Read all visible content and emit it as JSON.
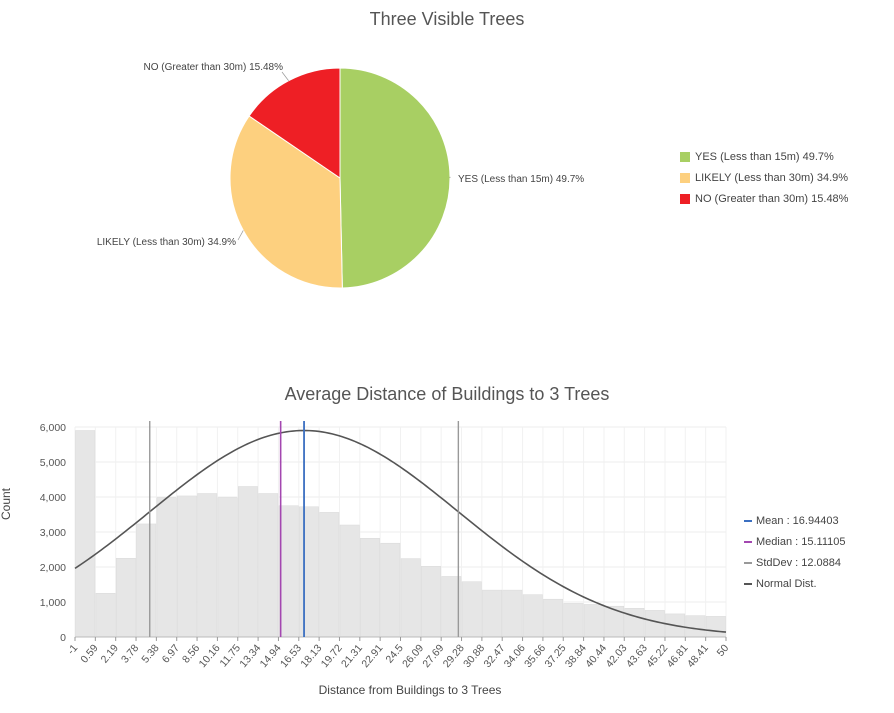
{
  "chart_data": [
    {
      "type": "pie",
      "title": "Three Visible Trees",
      "slices": [
        {
          "name": "YES (Less than 15m)",
          "value": 49.7,
          "color": "#a8cf63",
          "label": "YES (Less than 15m) 49.7%",
          "legend": "YES (Less than 15m) 49.7%"
        },
        {
          "name": "LIKELY (Less than 30m)",
          "value": 34.9,
          "color": "#fdd07f",
          "label": "LIKELY (Less than 30m) 34.9%",
          "legend": "LIKELY (Less than 30m) 34.9%"
        },
        {
          "name": "NO (Greater than 30m)",
          "value": 15.48,
          "color": "#ee1f25",
          "label": "NO (Greater than 30m) 15.48%",
          "legend": "NO (Greater than 30m) 15.48%"
        }
      ]
    },
    {
      "type": "bar",
      "title": "Average Distance of Buildings to 3 Trees",
      "xlabel": "Distance from Buildings to 3 Trees",
      "ylabel": "Count",
      "ylim": [
        0,
        6000
      ],
      "xlim": [
        -1,
        50
      ],
      "bin_edges": [
        -1,
        0.59,
        2.19,
        3.78,
        5.38,
        6.97,
        8.56,
        10.16,
        11.75,
        13.34,
        14.94,
        16.53,
        18.13,
        19.72,
        21.31,
        22.91,
        24.5,
        26.09,
        27.69,
        29.28,
        30.88,
        32.47,
        34.06,
        35.66,
        37.25,
        38.84,
        40.44,
        42.03,
        43.63,
        45.22,
        46.81,
        48.41,
        50
      ],
      "x_tick_labels": [
        "-1",
        "0.59",
        "2.19",
        "3.78",
        "5.38",
        "6.97",
        "8.56",
        "10.16",
        "11.75",
        "13.34",
        "14.94",
        "16.53",
        "18.13",
        "19.72",
        "21.31",
        "22.91",
        "24.5",
        "26.09",
        "27.69",
        "29.28",
        "30.88",
        "32.47",
        "34.06",
        "35.66",
        "37.25",
        "38.84",
        "40.44",
        "42.03",
        "43.63",
        "45.22",
        "46.81",
        "48.41",
        "50"
      ],
      "values": [
        5900,
        1250,
        2250,
        3230,
        3980,
        4030,
        4100,
        3980,
        4300,
        4100,
        3750,
        3720,
        3560,
        3200,
        2820,
        2680,
        2240,
        2020,
        1730,
        1580,
        1340,
        1340,
        1210,
        1080,
        960,
        930,
        880,
        820,
        760,
        660,
        610,
        590
      ],
      "y_ticks": [
        0,
        1000,
        2000,
        3000,
        4000,
        5000,
        6000
      ],
      "y_tick_labels": [
        "0",
        "1,000",
        "2,000",
        "3,000",
        "4,000",
        "5,000",
        "6,000"
      ],
      "bar_color": "#e6e6e6",
      "stats": {
        "mean": 16.94403,
        "median": 15.11105,
        "stddev": 12.0884,
        "mean_label": "Mean : 16.94403",
        "median_label": "Median : 15.11105",
        "stddev_label": "StdDev : 12.0884",
        "normal_label": "Normal Dist.",
        "mean_color": "#3b6fc1",
        "median_color": "#a347b0",
        "stddev_color": "#999999",
        "normal_color": "#555555"
      },
      "normal_peak": 5900
    }
  ]
}
